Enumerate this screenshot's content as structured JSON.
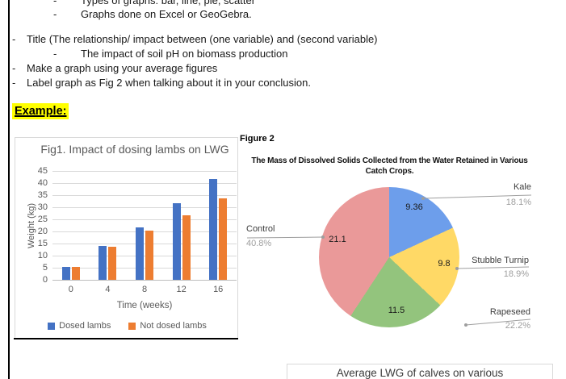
{
  "doc": {
    "bullet_char": "-",
    "lines": [
      {
        "level": 2,
        "text": "Types of graphs: bar, line, pie, scatter"
      },
      {
        "level": 2,
        "text": "Graphs done on Excel or GeoGebra."
      },
      {
        "level": 1,
        "text": "Title (The relationship/ impact between (one variable) and (second variable)"
      },
      {
        "level": 2,
        "text": "The impact of soil pH on biomass production"
      },
      {
        "level": 1,
        "text": "Make a graph using your average figures"
      },
      {
        "level": 1,
        "text": "Label graph as Fig 2 when talking about it in your conclusion."
      }
    ],
    "example_label": "Example:",
    "highlight_color": "#ffff00"
  },
  "chart_data": [
    {
      "type": "bar",
      "title": "Fig1. Impact of dosing lambs on LWG",
      "categories": [
        0,
        4,
        8,
        12,
        16
      ],
      "series": [
        {
          "name": "Dosed lambs",
          "color": "#4472c4",
          "values": [
            5.4,
            14,
            21.7,
            31.6,
            41.6
          ]
        },
        {
          "name": "Not dosed lambs",
          "color": "#ed7d31",
          "values": [
            5.2,
            13.6,
            20.4,
            26.7,
            33.7
          ]
        }
      ],
      "xlabel": "Time (weeks)",
      "ylabel": "Weight (kg)",
      "ylim": [
        0,
        45
      ],
      "ytick_step": 5,
      "grid": true,
      "legend_position": "bottom",
      "gridline_color": "#d9d9d9",
      "text_color": "#595959"
    },
    {
      "type": "pie",
      "figure_label": "Figure 2",
      "title": "The Mass of Dissolved Solids Collected from the Water Retained in Various Catch Crops.",
      "slices": [
        {
          "label": "Kale",
          "value": 9.36,
          "pct": "18.1%",
          "color": "#6d9eeb"
        },
        {
          "label": "Stubble Turnip",
          "value": 9.8,
          "pct": "18.9%",
          "color": "#ffd966"
        },
        {
          "label": "Rapeseed",
          "value": 11.5,
          "pct": "22.2%",
          "color": "#93c47d"
        },
        {
          "label": "Control",
          "value": 21.1,
          "pct": "40.8%",
          "color": "#ea9999"
        }
      ],
      "slice_order": "clockwise from top",
      "leader_line_color": "#9e9e9e"
    }
  ],
  "footer_box": {
    "text": "Average LWG of calves on various"
  }
}
